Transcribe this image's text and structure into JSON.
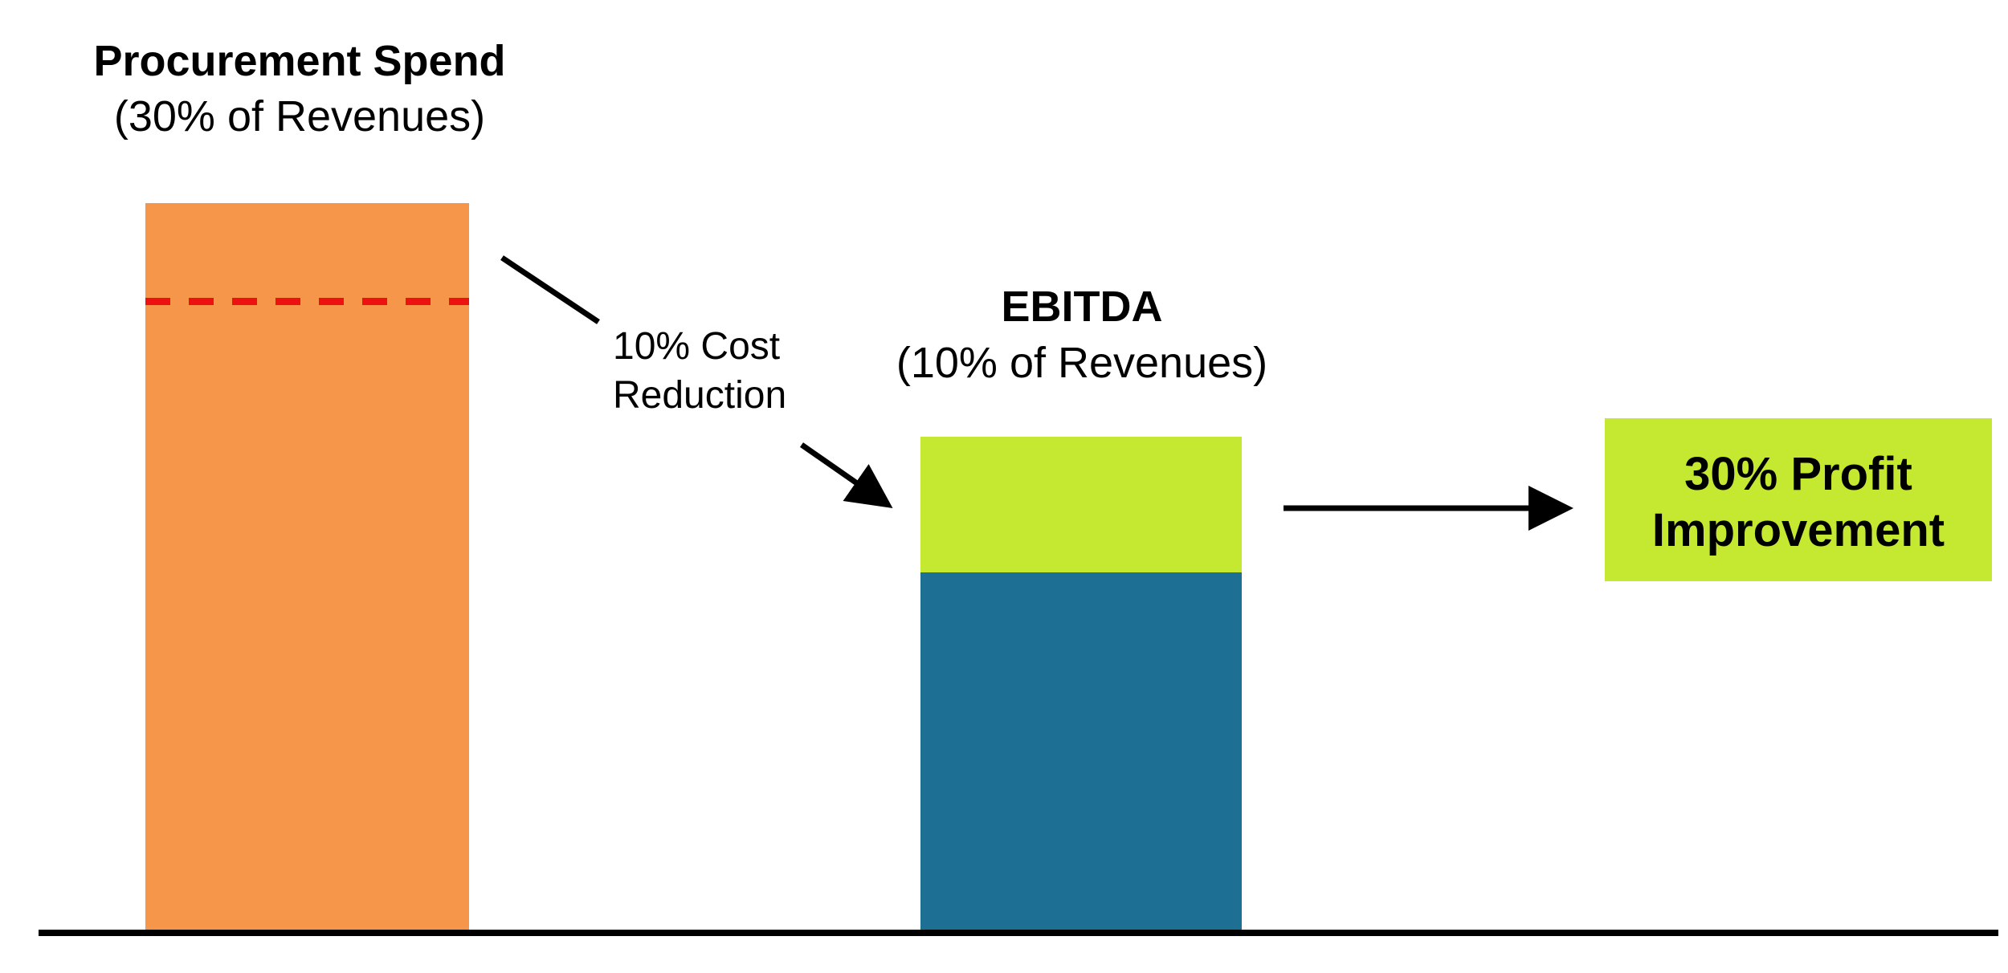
{
  "chart_data": {
    "type": "bar",
    "categories": [
      "Procurement Spend",
      "EBITDA"
    ],
    "units": "% of Revenues",
    "values": [
      30,
      10
    ],
    "procurement": {
      "title": "Procurement Spend",
      "subtitle": "(30% of Revenues)",
      "value": 30,
      "cost_reduction_pct": 10
    },
    "ebitda": {
      "title": "EBITDA",
      "subtitle": "(10% of Revenues)",
      "base_value": 10,
      "increase_value": 3
    },
    "annotations": {
      "cost_reduction_line1": "10% Cost",
      "cost_reduction_line2": "Reduction"
    },
    "result": {
      "line1": "30% Profit",
      "line2": "Improvement"
    },
    "colors": {
      "procurement": "#F5964A",
      "ebitda_base": "#1D7093",
      "ebitda_increase": "#C5E830",
      "result_box": "#C5E830",
      "dashed_line": "#EE1111",
      "axis": "#000000"
    }
  }
}
